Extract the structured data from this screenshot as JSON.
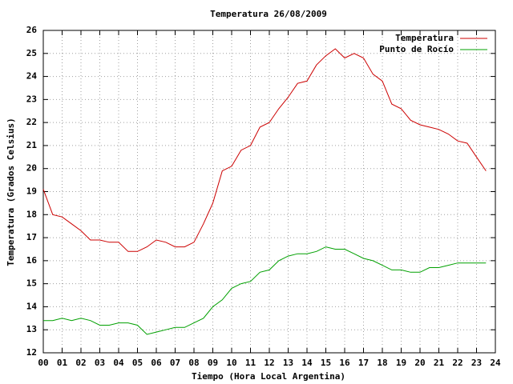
{
  "chart_data": {
    "type": "line",
    "title": "Temperatura 26/08/2009",
    "x_label": "Tiempo (Hora Local Argentina)",
    "y_label": "Temperatura (Grados Celsius)",
    "x": [
      0,
      0.5,
      1,
      1.5,
      2,
      2.5,
      3,
      3.5,
      4,
      4.5,
      5,
      5.5,
      6,
      6.5,
      7,
      7.5,
      8,
      8.5,
      9,
      9.5,
      10,
      10.5,
      11,
      11.5,
      12,
      12.5,
      13,
      13.5,
      14,
      14.5,
      15,
      15.5,
      16,
      16.5,
      17,
      17.5,
      18,
      18.5,
      19,
      19.5,
      20,
      20.5,
      21,
      21.5,
      22,
      22.5,
      23,
      23.5
    ],
    "series": [
      {
        "name": "Temperatura",
        "color": "#cc0000",
        "values": [
          19.1,
          18.0,
          17.9,
          17.6,
          17.3,
          16.9,
          16.9,
          16.8,
          16.8,
          16.4,
          16.4,
          16.6,
          16.9,
          16.8,
          16.6,
          16.6,
          16.8,
          17.6,
          18.5,
          19.9,
          20.1,
          20.8,
          21.0,
          21.8,
          22.0,
          22.6,
          23.1,
          23.7,
          23.8,
          24.5,
          24.9,
          25.2,
          24.8,
          25.0,
          24.8,
          24.1,
          23.8,
          22.8,
          22.6,
          22.1,
          21.9,
          21.8,
          21.7,
          21.5,
          21.2,
          21.1,
          20.5,
          19.9
        ]
      },
      {
        "name": "Punto de Rocío",
        "color": "#00a000",
        "values": [
          13.4,
          13.4,
          13.5,
          13.4,
          13.5,
          13.4,
          13.2,
          13.2,
          13.3,
          13.3,
          13.2,
          12.8,
          12.9,
          13.0,
          13.1,
          13.1,
          13.3,
          13.5,
          14.0,
          14.3,
          14.8,
          15.0,
          15.1,
          15.5,
          15.6,
          16.0,
          16.2,
          16.3,
          16.3,
          16.4,
          16.6,
          16.5,
          16.5,
          16.3,
          16.1,
          16.0,
          15.8,
          15.6,
          15.6,
          15.5,
          15.5,
          15.7,
          15.7,
          15.8,
          15.9,
          15.9,
          15.9,
          15.9
        ]
      }
    ],
    "xlim": [
      0,
      24
    ],
    "xticks": [
      {
        "value": 0,
        "label": "00"
      },
      {
        "value": 1,
        "label": "01"
      },
      {
        "value": 2,
        "label": "02"
      },
      {
        "value": 3,
        "label": "03"
      },
      {
        "value": 4,
        "label": "04"
      },
      {
        "value": 5,
        "label": "05"
      },
      {
        "value": 6,
        "label": "06"
      },
      {
        "value": 7,
        "label": "07"
      },
      {
        "value": 8,
        "label": "08"
      },
      {
        "value": 9,
        "label": "09"
      },
      10,
      11,
      12,
      13,
      14,
      15,
      16,
      17,
      18,
      19,
      20,
      21,
      22,
      23,
      24
    ],
    "ylim": [
      12,
      26
    ],
    "yticks": [
      12,
      13,
      14,
      15,
      16,
      17,
      18,
      19,
      20,
      21,
      22,
      23,
      24,
      25,
      26
    ],
    "grid": true,
    "legend": "upper-right"
  }
}
